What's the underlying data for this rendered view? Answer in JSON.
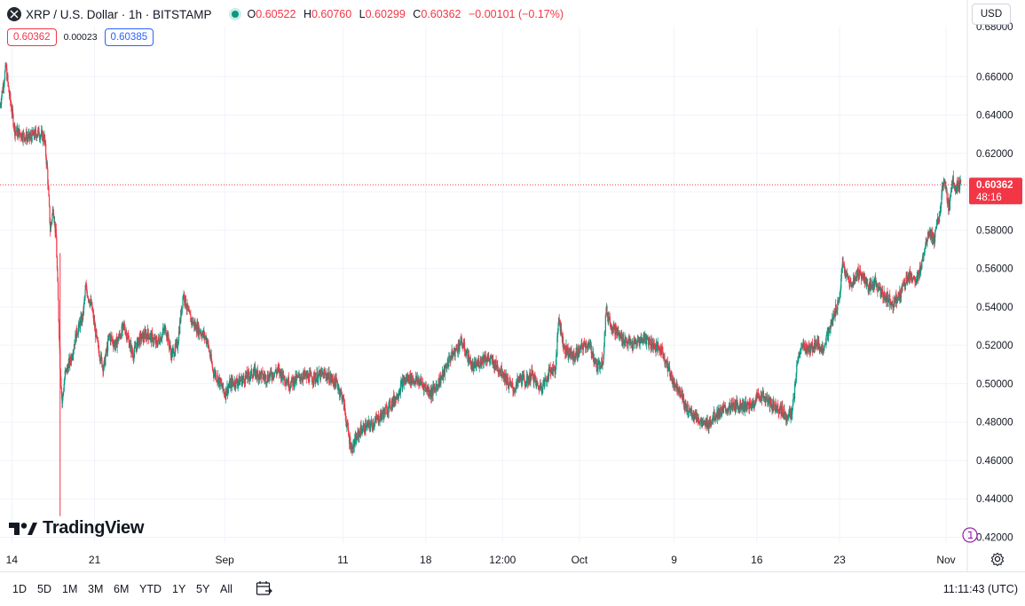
{
  "header": {
    "symbol_title": "XRP / U.S. Dollar · 1h · BITSTAMP",
    "ohlc": [
      {
        "key": "O",
        "value": "0.60522"
      },
      {
        "key": "H",
        "value": "0.60760"
      },
      {
        "key": "L",
        "value": "0.60299"
      },
      {
        "key": "C",
        "value": "0.60362"
      }
    ],
    "change": "−0.00101 (−0.17%)"
  },
  "prices": {
    "bid": "0.60362",
    "spread": "0.00023",
    "ask": "0.60385"
  },
  "currency": "USD",
  "last_price": {
    "value": "0.60362",
    "countdown": "48:16"
  },
  "logo_text": "TradingView",
  "bottom_bar": {
    "ranges": [
      "1D",
      "5D",
      "1M",
      "3M",
      "6M",
      "YTD",
      "1Y",
      "5Y",
      "All"
    ],
    "clock": "11:11:43 (UTC)"
  },
  "icons": {
    "symbol": "xrp-logo-icon",
    "live": "live-status-dot-icon",
    "calendar": "calendar-goto-icon",
    "settings": "gear-icon",
    "adjust": "adjust-data-icon"
  },
  "colors": {
    "up": "#089981",
    "down": "#f23645",
    "grid": "#f0f3fa",
    "last_price_line": "#f23645",
    "bid": "#f23645",
    "ask": "#2962ff"
  },
  "chart_data": {
    "type": "candlestick",
    "title": "XRP / U.S. Dollar · 1h · BITSTAMP",
    "y_axis": {
      "ticks": [
        "0.42000",
        "0.44000",
        "0.46000",
        "0.48000",
        "0.50000",
        "0.52000",
        "0.54000",
        "0.56000",
        "0.58000",
        "0.60000",
        "0.62000",
        "0.64000",
        "0.66000"
      ],
      "range": [
        0.417,
        0.686
      ],
      "position": "right"
    },
    "x_axis": {
      "ticks": [
        {
          "label": "14",
          "date": "2023-08-14"
        },
        {
          "label": "21",
          "date": "2023-08-21"
        },
        {
          "label": "Sep",
          "date": "2023-09-01"
        },
        {
          "label": "11",
          "date": "2023-09-11"
        },
        {
          "label": "18",
          "date": "2023-09-18"
        },
        {
          "label": "12:00",
          "date": "2023-09-24 12:00"
        },
        {
          "label": "Oct",
          "date": "2023-10-01"
        },
        {
          "label": "9",
          "date": "2023-10-09"
        },
        {
          "label": "16",
          "date": "2023-10-16"
        },
        {
          "label": "23",
          "date": "2023-10-23"
        },
        {
          "label": "Nov",
          "date": "2023-11-01"
        }
      ],
      "range": [
        "2023-08-13 00:00",
        "2023-11-02 12:00"
      ]
    },
    "grid": true,
    "last_price": 0.60362,
    "close_path": [
      {
        "date": "2023-08-13 00:00",
        "close": 0.645
      },
      {
        "date": "2023-08-13 12:00",
        "close": 0.665
      },
      {
        "date": "2023-08-13 18:00",
        "close": 0.652
      },
      {
        "date": "2023-08-14 06:00",
        "close": 0.632
      },
      {
        "date": "2023-08-14 18:00",
        "close": 0.63
      },
      {
        "date": "2023-08-15 12:00",
        "close": 0.628
      },
      {
        "date": "2023-08-16 06:00",
        "close": 0.631
      },
      {
        "date": "2023-08-16 18:00",
        "close": 0.628
      },
      {
        "date": "2023-08-17 00:00",
        "close": 0.611
      },
      {
        "date": "2023-08-17 06:00",
        "close": 0.58
      },
      {
        "date": "2023-08-17 12:00",
        "close": 0.592
      },
      {
        "date": "2023-08-17 18:00",
        "close": 0.575
      },
      {
        "date": "2023-08-18 02:00",
        "close": 0.51
      },
      {
        "date": "2023-08-18 06:00",
        "close": 0.49
      },
      {
        "date": "2023-08-18 12:00",
        "close": 0.505
      },
      {
        "date": "2023-08-19 00:00",
        "close": 0.513
      },
      {
        "date": "2023-08-19 12:00",
        "close": 0.527
      },
      {
        "date": "2023-08-20 00:00",
        "close": 0.535
      },
      {
        "date": "2023-08-20 06:00",
        "close": 0.55
      },
      {
        "date": "2023-08-20 18:00",
        "close": 0.54
      },
      {
        "date": "2023-08-21 06:00",
        "close": 0.52
      },
      {
        "date": "2023-08-21 18:00",
        "close": 0.508
      },
      {
        "date": "2023-08-22 06:00",
        "close": 0.525
      },
      {
        "date": "2023-08-22 18:00",
        "close": 0.52
      },
      {
        "date": "2023-08-23 12:00",
        "close": 0.53
      },
      {
        "date": "2023-08-24 06:00",
        "close": 0.515
      },
      {
        "date": "2023-08-24 18:00",
        "close": 0.523
      },
      {
        "date": "2023-08-25 12:00",
        "close": 0.526
      },
      {
        "date": "2023-08-26 06:00",
        "close": 0.521
      },
      {
        "date": "2023-08-27 00:00",
        "close": 0.529
      },
      {
        "date": "2023-08-27 12:00",
        "close": 0.515
      },
      {
        "date": "2023-08-28 00:00",
        "close": 0.52
      },
      {
        "date": "2023-08-28 12:00",
        "close": 0.547
      },
      {
        "date": "2023-08-29 00:00",
        "close": 0.535
      },
      {
        "date": "2023-08-29 12:00",
        "close": 0.53
      },
      {
        "date": "2023-08-30 00:00",
        "close": 0.527
      },
      {
        "date": "2023-08-30 12:00",
        "close": 0.523
      },
      {
        "date": "2023-08-31 00:00",
        "close": 0.507
      },
      {
        "date": "2023-08-31 12:00",
        "close": 0.502
      },
      {
        "date": "2023-09-01 00:00",
        "close": 0.495
      },
      {
        "date": "2023-09-01 12:00",
        "close": 0.5
      },
      {
        "date": "2023-09-02 12:00",
        "close": 0.502
      },
      {
        "date": "2023-09-03 12:00",
        "close": 0.506
      },
      {
        "date": "2023-09-04 12:00",
        "close": 0.503
      },
      {
        "date": "2023-09-05 12:00",
        "close": 0.507
      },
      {
        "date": "2023-09-06 12:00",
        "close": 0.5
      },
      {
        "date": "2023-09-07 12:00",
        "close": 0.504
      },
      {
        "date": "2023-09-08 12:00",
        "close": 0.503
      },
      {
        "date": "2023-09-09 12:00",
        "close": 0.505
      },
      {
        "date": "2023-09-10 12:00",
        "close": 0.5
      },
      {
        "date": "2023-09-11 00:00",
        "close": 0.492
      },
      {
        "date": "2023-09-11 12:00",
        "close": 0.472
      },
      {
        "date": "2023-09-11 18:00",
        "close": 0.466
      },
      {
        "date": "2023-09-12 12:00",
        "close": 0.476
      },
      {
        "date": "2023-09-13 12:00",
        "close": 0.479
      },
      {
        "date": "2023-09-14 12:00",
        "close": 0.485
      },
      {
        "date": "2023-09-15 12:00",
        "close": 0.493
      },
      {
        "date": "2023-09-16 00:00",
        "close": 0.5
      },
      {
        "date": "2023-09-16 12:00",
        "close": 0.503
      },
      {
        "date": "2023-09-17 12:00",
        "close": 0.501
      },
      {
        "date": "2023-09-18 12:00",
        "close": 0.495
      },
      {
        "date": "2023-09-19 00:00",
        "close": 0.5
      },
      {
        "date": "2023-09-19 12:00",
        "close": 0.505
      },
      {
        "date": "2023-09-20 00:00",
        "close": 0.513
      },
      {
        "date": "2023-09-20 12:00",
        "close": 0.517
      },
      {
        "date": "2023-09-21 00:00",
        "close": 0.522
      },
      {
        "date": "2023-09-21 12:00",
        "close": 0.515
      },
      {
        "date": "2023-09-22 00:00",
        "close": 0.508
      },
      {
        "date": "2023-09-22 12:00",
        "close": 0.511
      },
      {
        "date": "2023-09-23 00:00",
        "close": 0.514
      },
      {
        "date": "2023-09-23 12:00",
        "close": 0.512
      },
      {
        "date": "2023-09-24 00:00",
        "close": 0.509
      },
      {
        "date": "2023-09-24 12:00",
        "close": 0.506
      },
      {
        "date": "2023-09-25 00:00",
        "close": 0.5
      },
      {
        "date": "2023-09-25 12:00",
        "close": 0.497
      },
      {
        "date": "2023-09-26 00:00",
        "close": 0.503
      },
      {
        "date": "2023-09-26 12:00",
        "close": 0.501
      },
      {
        "date": "2023-09-27 00:00",
        "close": 0.505
      },
      {
        "date": "2023-09-27 12:00",
        "close": 0.498
      },
      {
        "date": "2023-09-28 00:00",
        "close": 0.5
      },
      {
        "date": "2023-09-28 12:00",
        "close": 0.507
      },
      {
        "date": "2023-09-29 00:00",
        "close": 0.508
      },
      {
        "date": "2023-09-29 06:00",
        "close": 0.536
      },
      {
        "date": "2023-09-29 12:00",
        "close": 0.525
      },
      {
        "date": "2023-09-29 18:00",
        "close": 0.518
      },
      {
        "date": "2023-09-30 12:00",
        "close": 0.514
      },
      {
        "date": "2023-10-01 00:00",
        "close": 0.517
      },
      {
        "date": "2023-10-01 12:00",
        "close": 0.521
      },
      {
        "date": "2023-10-02 00:00",
        "close": 0.518
      },
      {
        "date": "2023-10-02 12:00",
        "close": 0.508
      },
      {
        "date": "2023-10-03 00:00",
        "close": 0.513
      },
      {
        "date": "2023-10-03 06:00",
        "close": 0.538
      },
      {
        "date": "2023-10-03 18:00",
        "close": 0.53
      },
      {
        "date": "2023-10-04 12:00",
        "close": 0.524
      },
      {
        "date": "2023-10-05 12:00",
        "close": 0.52
      },
      {
        "date": "2023-10-06 12:00",
        "close": 0.524
      },
      {
        "date": "2023-10-07 12:00",
        "close": 0.519
      },
      {
        "date": "2023-10-08 00:00",
        "close": 0.517
      },
      {
        "date": "2023-10-08 12:00",
        "close": 0.508
      },
      {
        "date": "2023-10-09 00:00",
        "close": 0.5
      },
      {
        "date": "2023-10-09 12:00",
        "close": 0.497
      },
      {
        "date": "2023-10-10 00:00",
        "close": 0.487
      },
      {
        "date": "2023-10-10 12:00",
        "close": 0.485
      },
      {
        "date": "2023-10-11 00:00",
        "close": 0.482
      },
      {
        "date": "2023-10-11 12:00",
        "close": 0.478
      },
      {
        "date": "2023-10-12 00:00",
        "close": 0.48
      },
      {
        "date": "2023-10-12 12:00",
        "close": 0.484
      },
      {
        "date": "2023-10-13 12:00",
        "close": 0.487
      },
      {
        "date": "2023-10-14 12:00",
        "close": 0.489
      },
      {
        "date": "2023-10-15 12:00",
        "close": 0.488
      },
      {
        "date": "2023-10-16 00:00",
        "close": 0.493
      },
      {
        "date": "2023-10-16 12:00",
        "close": 0.494
      },
      {
        "date": "2023-10-17 00:00",
        "close": 0.49
      },
      {
        "date": "2023-10-17 12:00",
        "close": 0.488
      },
      {
        "date": "2023-10-18 00:00",
        "close": 0.487
      },
      {
        "date": "2023-10-18 12:00",
        "close": 0.483
      },
      {
        "date": "2023-10-19 00:00",
        "close": 0.485
      },
      {
        "date": "2023-10-19 06:00",
        "close": 0.5
      },
      {
        "date": "2023-10-19 12:00",
        "close": 0.515
      },
      {
        "date": "2023-10-20 00:00",
        "close": 0.52
      },
      {
        "date": "2023-10-20 12:00",
        "close": 0.517
      },
      {
        "date": "2023-10-21 00:00",
        "close": 0.522
      },
      {
        "date": "2023-10-21 12:00",
        "close": 0.518
      },
      {
        "date": "2023-10-22 00:00",
        "close": 0.525
      },
      {
        "date": "2023-10-22 12:00",
        "close": 0.535
      },
      {
        "date": "2023-10-23 00:00",
        "close": 0.545
      },
      {
        "date": "2023-10-23 06:00",
        "close": 0.563
      },
      {
        "date": "2023-10-23 12:00",
        "close": 0.557
      },
      {
        "date": "2023-10-24 00:00",
        "close": 0.551
      },
      {
        "date": "2023-10-24 12:00",
        "close": 0.558
      },
      {
        "date": "2023-10-25 00:00",
        "close": 0.556
      },
      {
        "date": "2023-10-25 12:00",
        "close": 0.549
      },
      {
        "date": "2023-10-26 00:00",
        "close": 0.553
      },
      {
        "date": "2023-10-26 12:00",
        "close": 0.547
      },
      {
        "date": "2023-10-27 00:00",
        "close": 0.545
      },
      {
        "date": "2023-10-27 12:00",
        "close": 0.542
      },
      {
        "date": "2023-10-28 00:00",
        "close": 0.545
      },
      {
        "date": "2023-10-28 12:00",
        "close": 0.553
      },
      {
        "date": "2023-10-29 00:00",
        "close": 0.557
      },
      {
        "date": "2023-10-29 12:00",
        "close": 0.552
      },
      {
        "date": "2023-10-30 00:00",
        "close": 0.565
      },
      {
        "date": "2023-10-30 12:00",
        "close": 0.58
      },
      {
        "date": "2023-10-31 00:00",
        "close": 0.575
      },
      {
        "date": "2023-10-31 12:00",
        "close": 0.59
      },
      {
        "date": "2023-10-31 18:00",
        "close": 0.605
      },
      {
        "date": "2023-11-01 00:00",
        "close": 0.6
      },
      {
        "date": "2023-11-01 06:00",
        "close": 0.591
      },
      {
        "date": "2023-11-01 12:00",
        "close": 0.607
      },
      {
        "date": "2023-11-01 18:00",
        "close": 0.603
      },
      {
        "date": "2023-11-02 06:00",
        "close": 0.60362
      }
    ]
  }
}
